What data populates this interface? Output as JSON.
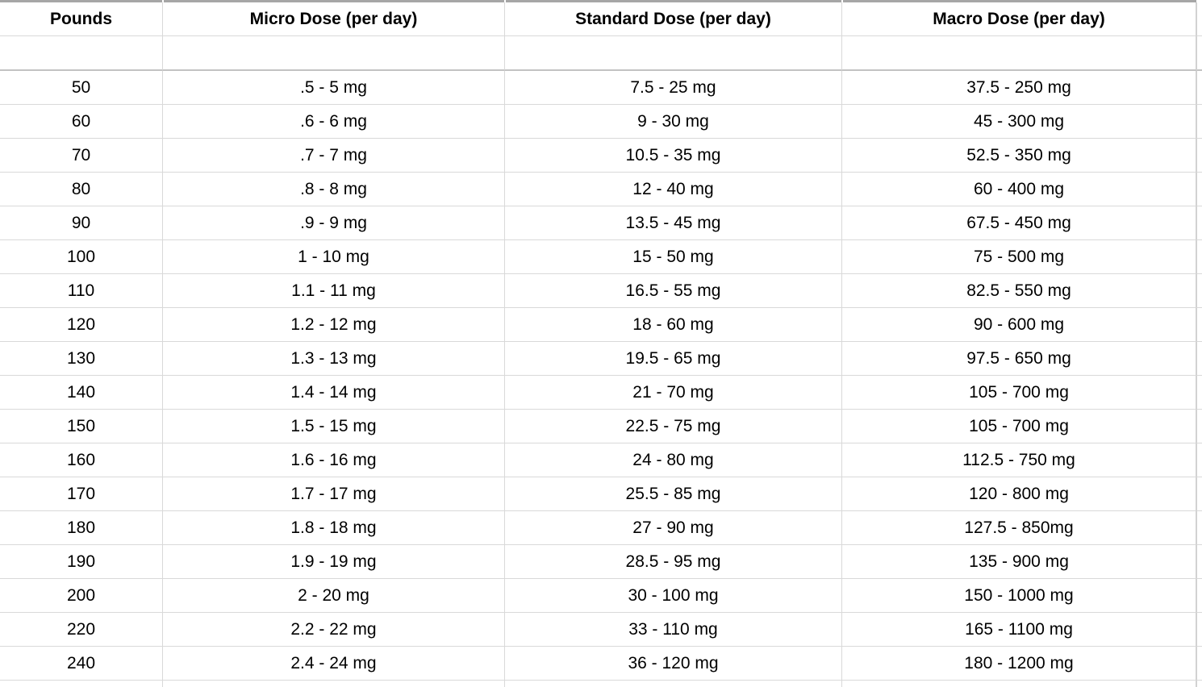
{
  "table": {
    "columns": [
      {
        "key": "pounds",
        "label": "Pounds"
      },
      {
        "key": "micro-dose",
        "label": "Micro Dose (per day)"
      },
      {
        "key": "standard-dose",
        "label": "Standard Dose (per day)"
      },
      {
        "key": "macro-dose",
        "label": "Macro Dose (per day)"
      }
    ],
    "rows": [
      [
        "50",
        ".5 - 5 mg",
        "7.5 - 25 mg",
        "37.5 - 250 mg"
      ],
      [
        "60",
        ".6 - 6 mg",
        "9 - 30 mg",
        "45 - 300 mg"
      ],
      [
        "70",
        ".7 - 7 mg",
        "10.5 - 35 mg",
        "52.5 - 350 mg"
      ],
      [
        "80",
        ".8 - 8 mg",
        "12 - 40 mg",
        "60 - 400 mg"
      ],
      [
        "90",
        ".9 - 9 mg",
        "13.5 - 45 mg",
        "67.5 - 450 mg"
      ],
      [
        "100",
        "1 - 10 mg",
        "15 - 50 mg",
        "75 - 500 mg"
      ],
      [
        "110",
        "1.1 - 11 mg",
        "16.5 - 55 mg",
        "82.5 - 550 mg"
      ],
      [
        "120",
        "1.2 - 12 mg",
        "18 - 60 mg",
        "90 - 600 mg"
      ],
      [
        "130",
        "1.3 - 13 mg",
        "19.5 - 65 mg",
        "97.5 - 650 mg"
      ],
      [
        "140",
        "1.4 - 14 mg",
        "21 - 70 mg",
        "105 - 700 mg"
      ],
      [
        "150",
        "1.5 - 15 mg",
        "22.5 - 75 mg",
        "105 - 700 mg"
      ],
      [
        "160",
        "1.6 - 16 mg",
        "24 - 80 mg",
        "112.5 - 750 mg"
      ],
      [
        "170",
        "1.7 - 17 mg",
        "25.5 - 85 mg",
        "120 - 800 mg"
      ],
      [
        "180",
        "1.8 - 18 mg",
        "27 - 90 mg",
        "127.5 - 850mg"
      ],
      [
        "190",
        "1.9 - 19 mg",
        "28.5 - 95 mg",
        "135 - 900 mg"
      ],
      [
        "200",
        "2 - 20 mg",
        "30 - 100 mg",
        "150 - 1000 mg"
      ],
      [
        "220",
        "2.2 - 22 mg",
        "33 - 110 mg",
        "165 - 1100 mg"
      ],
      [
        "240",
        "2.4 - 24 mg",
        "36 - 120 mg",
        "180 - 1200 mg"
      ]
    ]
  },
  "colors": {
    "gridline": "#d9d9d9",
    "thick_separator": "#c2c2c2",
    "top_border_strip": "#a6a6a6",
    "text": "#000000",
    "background": "#ffffff"
  }
}
